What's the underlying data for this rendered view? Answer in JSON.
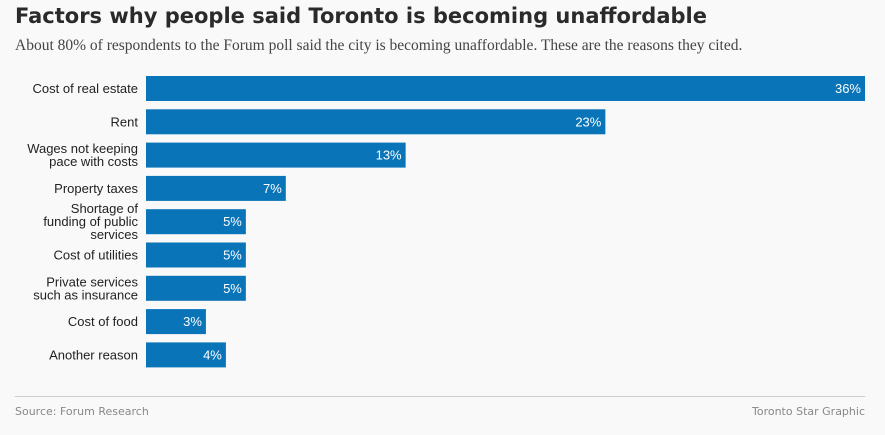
{
  "chart_data": {
    "type": "bar",
    "orientation": "horizontal",
    "title": "Factors why people said Toronto is becoming unaffordable",
    "subtitle": "About 80% of respondents to the Forum poll said the city is becoming unaffordable. These are the reasons they cited.",
    "categories": [
      "Cost of real estate",
      "Rent",
      "Wages not keeping pace with costs",
      "Property taxes",
      "Shortage of funding of public services",
      "Cost of utilities",
      "Private services such as insurance",
      "Cost of food",
      "Another reason"
    ],
    "category_lines": [
      [
        "Cost of real estate"
      ],
      [
        "Rent"
      ],
      [
        "Wages not keeping",
        "pace with costs"
      ],
      [
        "Property taxes"
      ],
      [
        "Shortage of",
        "funding of public",
        "services"
      ],
      [
        "Cost of utilities"
      ],
      [
        "Private services",
        "such as insurance"
      ],
      [
        "Cost of food"
      ],
      [
        "Another reason"
      ]
    ],
    "values": [
      36,
      23,
      13,
      7,
      5,
      5,
      5,
      3,
      4
    ],
    "value_labels": [
      "36%",
      "23%",
      "13%",
      "7%",
      "5%",
      "5%",
      "5%",
      "3%",
      "4%"
    ],
    "xlim": [
      0,
      36
    ],
    "grid": false,
    "bar_color": "#0a74b9"
  },
  "footer": {
    "source": "Source: Forum Research",
    "credit": "Toronto Star Graphic"
  }
}
